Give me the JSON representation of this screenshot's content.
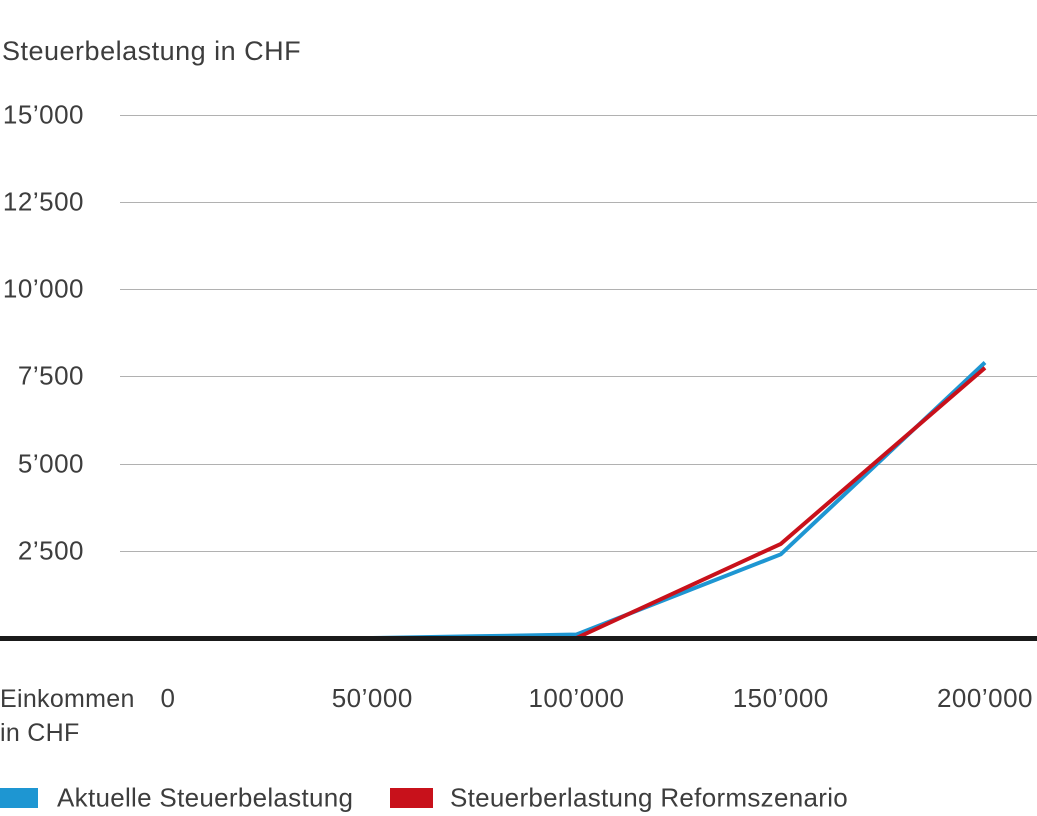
{
  "title": "Steuerbelastung in CHF",
  "x_axis_title": {
    "line1": "Einkommen",
    "line2": "in CHF"
  },
  "colors": {
    "series_current": "#1e96d2",
    "series_reform": "#c8111b",
    "axis": "#1a1a1a",
    "gridline": "#b1b1b1",
    "text": "#3d3d3d",
    "background": "#ffffff"
  },
  "legend": [
    {
      "label": "Aktuelle Steuerbelastung",
      "color": "#1e96d2"
    },
    {
      "label": "Steuerberlastung Reformszenario",
      "color": "#c8111b"
    }
  ],
  "chart_data": {
    "type": "line",
    "title": "Steuerbelastung in CHF",
    "xlabel": "Einkommen in CHF",
    "ylabel": "Steuerbelastung in CHF",
    "xlim": [
      0,
      200000
    ],
    "ylim": [
      0,
      15000
    ],
    "grid": "horizontal-only",
    "legend_position": "bottom",
    "x_ticks": [
      {
        "value": 0,
        "label": "0"
      },
      {
        "value": 50000,
        "label": "50’000"
      },
      {
        "value": 100000,
        "label": "100’000"
      },
      {
        "value": 150000,
        "label": "150’000"
      },
      {
        "value": 200000,
        "label": "200’000"
      }
    ],
    "y_ticks": [
      {
        "value": 2500,
        "label": "2’500"
      },
      {
        "value": 5000,
        "label": "5’000"
      },
      {
        "value": 7500,
        "label": "7’500"
      },
      {
        "value": 10000,
        "label": "10’000"
      },
      {
        "value": 12500,
        "label": "12’500"
      },
      {
        "value": 15000,
        "label": "15’000"
      }
    ],
    "series": [
      {
        "name": "Aktuelle Steuerbelastung",
        "color": "#1e96d2",
        "points": [
          [
            0,
            0
          ],
          [
            50000,
            0
          ],
          [
            75000,
            50
          ],
          [
            100000,
            100
          ],
          [
            150000,
            2400
          ],
          [
            200000,
            7900
          ]
        ]
      },
      {
        "name": "Steuerberlastung Reformszenario",
        "color": "#c8111b",
        "points": [
          [
            0,
            0
          ],
          [
            50000,
            0
          ],
          [
            100000,
            0
          ],
          [
            150000,
            2700
          ],
          [
            200000,
            7750
          ]
        ]
      }
    ]
  }
}
